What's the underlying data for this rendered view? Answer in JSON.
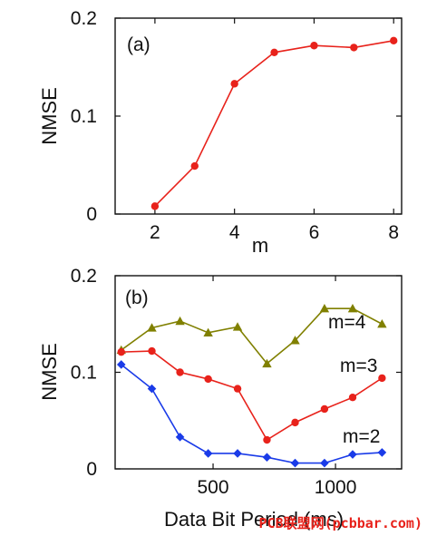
{
  "chart_data": [
    {
      "type": "line",
      "panel_label": "(a)",
      "xlabel": "m",
      "ylabel": "NMSE",
      "xlim": [
        1,
        8.2
      ],
      "ylim": [
        0,
        0.2
      ],
      "xticks": [
        2,
        4,
        6,
        8
      ],
      "xtick_labels": [
        "2",
        "4",
        "6",
        "8"
      ],
      "yticks": [
        0,
        0.1,
        0.2
      ],
      "ytick_labels": [
        "0",
        "0.1",
        "0.2"
      ],
      "series": [
        {
          "color": "#e8221b",
          "marker": "circle",
          "x": [
            2,
            3,
            4,
            5,
            6,
            7,
            8
          ],
          "y": [
            0.008,
            0.049,
            0.133,
            0.165,
            0.172,
            0.17,
            0.177
          ]
        }
      ]
    },
    {
      "type": "line",
      "panel_label": "(b)",
      "xlabel": "Data Bit Period (ms)",
      "ylabel": "NMSE",
      "xlim": [
        100,
        1270
      ],
      "ylim": [
        0,
        0.2
      ],
      "xticks": [
        500,
        1000
      ],
      "xtick_labels": [
        "500",
        "1000"
      ],
      "yticks": [
        0,
        0.1,
        0.2
      ],
      "ytick_labels": [
        "0",
        "0.1",
        "0.2"
      ],
      "series": [
        {
          "name": "m=4",
          "color": "#808000",
          "marker": "triangle",
          "x": [
            125,
            250,
            365,
            480,
            600,
            720,
            835,
            955,
            1070,
            1190
          ],
          "y": [
            0.123,
            0.146,
            0.153,
            0.141,
            0.147,
            0.109,
            0.133,
            0.166,
            0.166,
            0.15
          ]
        },
        {
          "name": "m=3",
          "color": "#e8221b",
          "marker": "circle",
          "x": [
            125,
            250,
            365,
            480,
            600,
            720,
            835,
            955,
            1070,
            1190
          ],
          "y": [
            0.121,
            0.122,
            0.1,
            0.093,
            0.083,
            0.03,
            0.048,
            0.062,
            0.074,
            0.094
          ]
        },
        {
          "name": "m=2",
          "color": "#1a3be8",
          "marker": "diamond",
          "x": [
            125,
            250,
            365,
            480,
            600,
            720,
            835,
            955,
            1070,
            1190
          ],
          "y": [
            0.108,
            0.083,
            0.033,
            0.016,
            0.016,
            0.012,
            0.006,
            0.006,
            0.015,
            0.017
          ]
        }
      ]
    }
  ],
  "watermark": "PCB联盟网(pcbbar.com)"
}
